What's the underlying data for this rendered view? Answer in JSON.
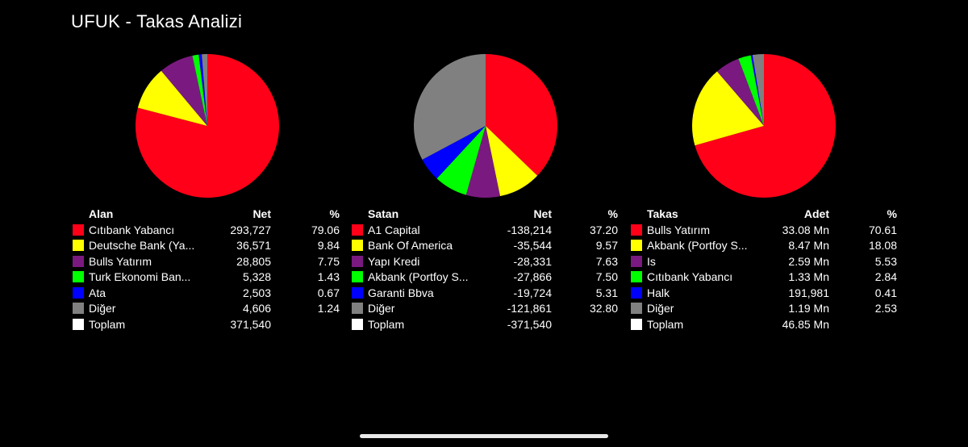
{
  "title": "UFUK - Takas Analizi",
  "chart_data": [
    {
      "type": "pie",
      "header": {
        "name": "Alan",
        "net": "Net",
        "pct": "%"
      },
      "slices": [
        {
          "label": "Cıtıbank Yabancı",
          "net": "293,727",
          "pct": 79.06,
          "pct_text": "79.06",
          "color": "#ff0018"
        },
        {
          "label": "Deutsche Bank (Ya...",
          "net": "36,571",
          "pct": 9.84,
          "pct_text": "9.84",
          "color": "#ffff00"
        },
        {
          "label": "Bulls Yatırım",
          "net": "28,805",
          "pct": 7.75,
          "pct_text": "7.75",
          "color": "#7a1a80"
        },
        {
          "label": "Turk Ekonomi Ban...",
          "net": "5,328",
          "pct": 1.43,
          "pct_text": "1.43",
          "color": "#00ff00"
        },
        {
          "label": "Ata",
          "net": "2,503",
          "pct": 0.67,
          "pct_text": "0.67",
          "color": "#0000ff"
        },
        {
          "label": "Diğer",
          "net": "4,606",
          "pct": 1.24,
          "pct_text": "1.24",
          "color": "#808080"
        }
      ],
      "total": {
        "label": "Toplam",
        "net": "371,540",
        "color": "#ffffff"
      }
    },
    {
      "type": "pie",
      "header": {
        "name": "Satan",
        "net": "Net",
        "pct": "%"
      },
      "slices": [
        {
          "label": "A1 Capital",
          "net": "-138,214",
          "pct": 37.2,
          "pct_text": "37.20",
          "color": "#ff0018"
        },
        {
          "label": "Bank Of America",
          "net": "-35,544",
          "pct": 9.57,
          "pct_text": "9.57",
          "color": "#ffff00"
        },
        {
          "label": "Yapı Kredi",
          "net": "-28,331",
          "pct": 7.63,
          "pct_text": "7.63",
          "color": "#7a1a80"
        },
        {
          "label": "Akbank (Portfoy S...",
          "net": "-27,866",
          "pct": 7.5,
          "pct_text": "7.50",
          "color": "#00ff00"
        },
        {
          "label": "Garanti Bbva",
          "net": "-19,724",
          "pct": 5.31,
          "pct_text": "5.31",
          "color": "#0000ff"
        },
        {
          "label": "Diğer",
          "net": "-121,861",
          "pct": 32.8,
          "pct_text": "32.80",
          "color": "#808080"
        }
      ],
      "total": {
        "label": "Toplam",
        "net": "-371,540",
        "color": "#ffffff"
      }
    },
    {
      "type": "pie",
      "header": {
        "name": "Takas",
        "net": "Adet",
        "pct": "%"
      },
      "slices": [
        {
          "label": "Bulls Yatırım",
          "net": "33.08 Mn",
          "pct": 70.61,
          "pct_text": "70.61",
          "color": "#ff0018"
        },
        {
          "label": "Akbank (Portfoy S...",
          "net": "8.47 Mn",
          "pct": 18.08,
          "pct_text": "18.08",
          "color": "#ffff00"
        },
        {
          "label": "Is",
          "net": "2.59 Mn",
          "pct": 5.53,
          "pct_text": "5.53",
          "color": "#7a1a80"
        },
        {
          "label": "Cıtıbank Yabancı",
          "net": "1.33 Mn",
          "pct": 2.84,
          "pct_text": "2.84",
          "color": "#00ff00"
        },
        {
          "label": "Halk",
          "net": "191,981",
          "pct": 0.41,
          "pct_text": "0.41",
          "color": "#0000ff"
        },
        {
          "label": "Diğer",
          "net": "1.19 Mn",
          "pct": 2.53,
          "pct_text": "2.53",
          "color": "#808080"
        }
      ],
      "total": {
        "label": "Toplam",
        "net": "46.85 Mn",
        "color": "#ffffff"
      }
    }
  ]
}
